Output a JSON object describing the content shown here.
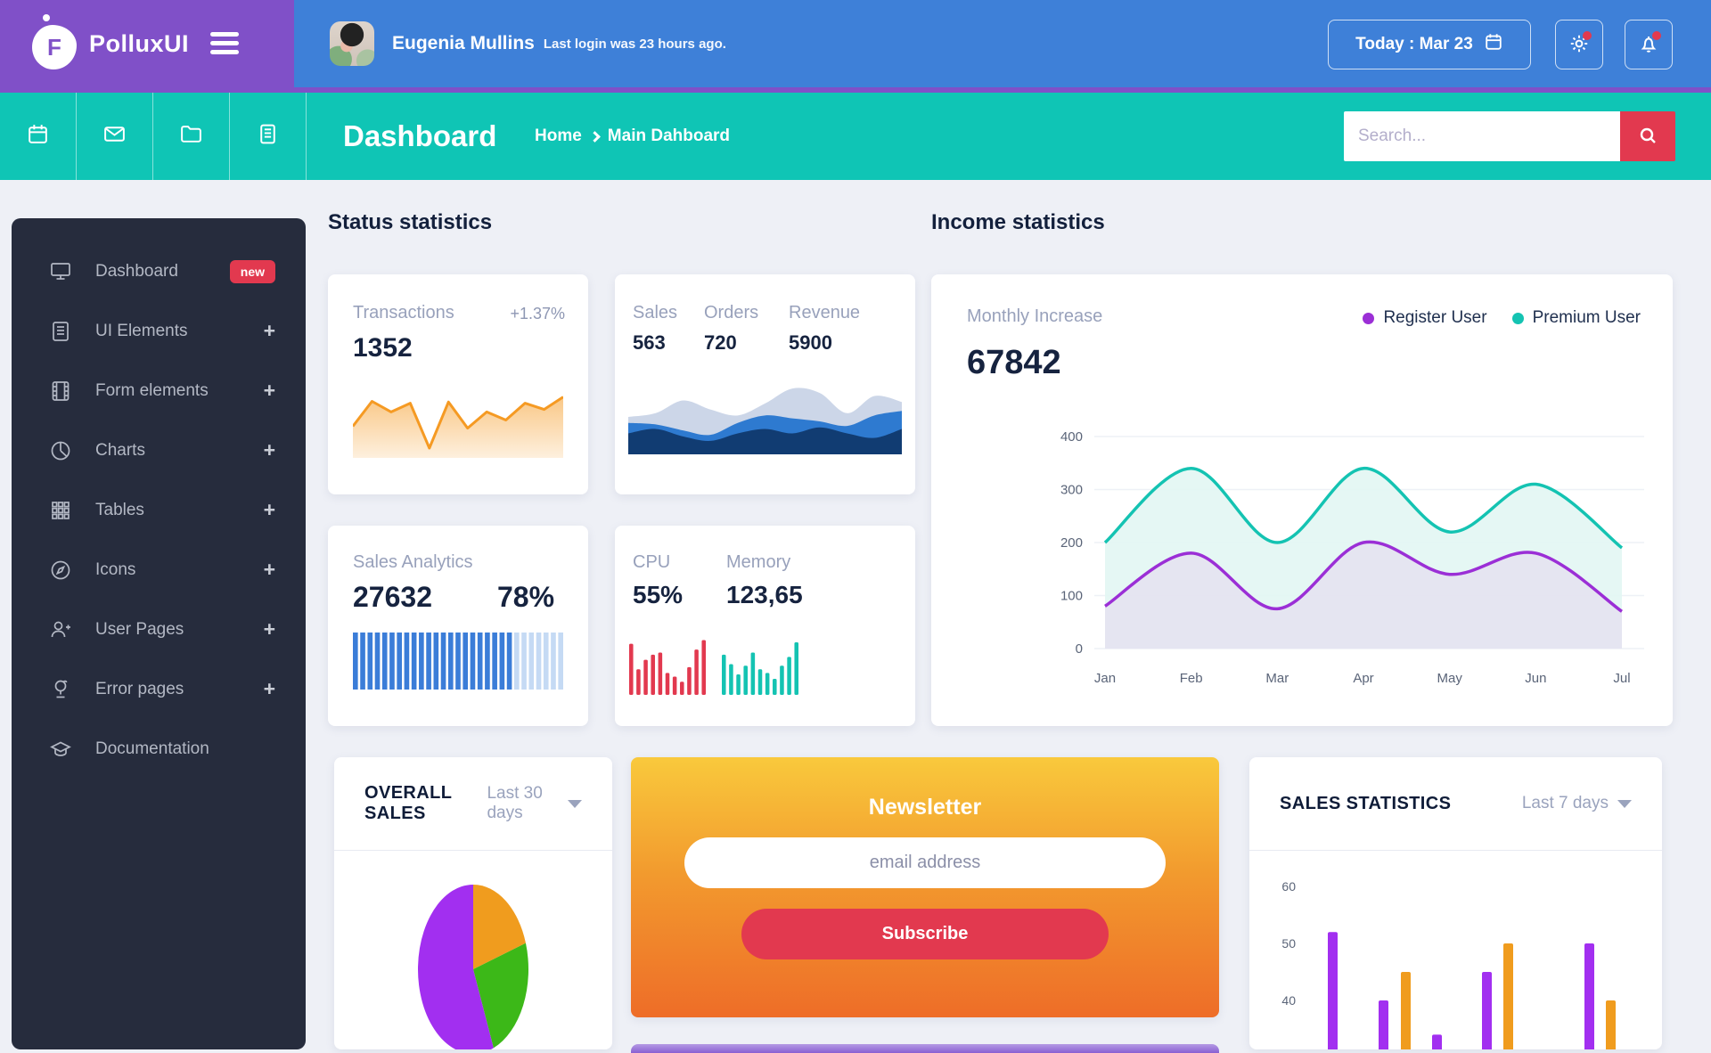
{
  "brand": {
    "name": "PolluxUI",
    "logo_letter": "F"
  },
  "header": {
    "user_name": "Eugenia Mullins",
    "last_login": "Last login was 23 hours ago.",
    "today_label": "Today : Mar 23"
  },
  "subnav": {
    "title": "Dashboard",
    "breadcrumb": {
      "home": "Home",
      "current": "Main Dahboard"
    },
    "search_placeholder": "Search...",
    "icons": [
      "calendar",
      "envelope",
      "folder",
      "notes"
    ]
  },
  "sidebar": {
    "expand_glyph": "+",
    "items": [
      {
        "label": "Dashboard",
        "icon": "monitor",
        "badge": "new"
      },
      {
        "label": "UI Elements",
        "icon": "file-text",
        "expand": true
      },
      {
        "label": "Form elements",
        "icon": "film",
        "expand": true
      },
      {
        "label": "Charts",
        "icon": "pie",
        "expand": true
      },
      {
        "label": "Tables",
        "icon": "grid",
        "expand": true
      },
      {
        "label": "Icons",
        "icon": "compass",
        "expand": true
      },
      {
        "label": "User Pages",
        "icon": "user-plus",
        "expand": true
      },
      {
        "label": "Error pages",
        "icon": "lamp",
        "expand": true
      },
      {
        "label": "Documentation",
        "icon": "cap",
        "expand": false
      }
    ]
  },
  "sections": {
    "status_title": "Status statistics",
    "income_title": "Income statistics"
  },
  "cards": {
    "transactions": {
      "label": "Transactions",
      "delta": "+1.37%",
      "value": "1352"
    },
    "sales_orders_revenue": {
      "columns": [
        {
          "label": "Sales",
          "value": "563"
        },
        {
          "label": "Orders",
          "value": "720"
        },
        {
          "label": "Revenue",
          "value": "5900"
        }
      ]
    },
    "sales_analytics": {
      "label": "Sales Analytics",
      "value": "27632",
      "percent": "78%"
    },
    "cpu_memory": {
      "cpu_label": "CPU",
      "cpu_value": "55%",
      "memory_label": "Memory",
      "memory_value": "123,65"
    },
    "income": {
      "label": "Monthly Increase",
      "value": "67842"
    },
    "overall_sales": {
      "title": "OVERALL SALES",
      "range": "Last 30 days"
    },
    "newsletter": {
      "title": "Newsletter",
      "email_placeholder": "email address",
      "button_label": "Subscribe"
    },
    "sales_statistics": {
      "title": "SALES STATISTICS",
      "range": "Last 7 days"
    }
  },
  "colors": {
    "purple_header": "#8050c8",
    "blue_header": "#3e80d8",
    "teal_bar": "#0fc5b5",
    "accent_red": "#e2394f",
    "sidebar_bg": "#262c3d",
    "orange_line": "#f59a23",
    "bar_blue": "#3b7dd8",
    "bar_blue_light": "#c5daf4",
    "cpu_red": "#e2394f",
    "memory_teal": "#14c3b2",
    "pie_purple": "#a22ff0",
    "pie_orange": "#f09c1e",
    "pie_green": "#3cb818"
  },
  "chart_data": [
    {
      "id": "transactions-spark",
      "type": "line",
      "title": "Transactions sparkline",
      "color": "#f59a23",
      "values": [
        45,
        85,
        68,
        82,
        10,
        84,
        42,
        68,
        55,
        82,
        72,
        92
      ],
      "ylim": [
        0,
        100
      ],
      "grid": false
    },
    {
      "id": "waves",
      "type": "area",
      "title": "Sales/Orders/Revenue waves",
      "series": [
        {
          "name": "top-light",
          "color": "#ccd6e8",
          "values": [
            50,
            55,
            72,
            60,
            52,
            68,
            88,
            82,
            55,
            78,
            70
          ]
        },
        {
          "name": "mid-blue",
          "color": "#2e7ad0",
          "values": [
            42,
            40,
            32,
            26,
            42,
            52,
            48,
            44,
            38,
            52,
            58
          ]
        },
        {
          "name": "dark-navy",
          "color": "#113c72",
          "values": [
            28,
            34,
            24,
            18,
            28,
            34,
            28,
            36,
            28,
            22,
            34
          ]
        }
      ],
      "ylim": [
        0,
        100
      ],
      "grid": false
    },
    {
      "id": "sales-analytics-bars",
      "type": "bar",
      "title": "Sales Analytics progress bars",
      "total_bars": 29,
      "solid_bars": 22,
      "solid_color": "#3b7dd8",
      "light_color": "#c5daf4"
    },
    {
      "id": "cpu-spark",
      "type": "bar",
      "color": "#e2394f",
      "values": [
        70,
        35,
        48,
        55,
        58,
        30,
        25,
        18,
        38,
        62,
        75
      ],
      "ylim": [
        0,
        100
      ]
    },
    {
      "id": "memory-spark",
      "type": "bar",
      "color": "#14c3b2",
      "values": [
        55,
        42,
        28,
        40,
        58,
        35,
        30,
        22,
        40,
        52,
        72
      ],
      "ylim": [
        0,
        100
      ]
    },
    {
      "id": "income",
      "type": "line",
      "title": "Income statistics",
      "legend_position": "top-right",
      "grid": true,
      "x": [
        "Jan",
        "Feb",
        "Mar",
        "Apr",
        "May",
        "Jun",
        "Jul"
      ],
      "yticks": [
        0,
        100,
        200,
        300,
        400
      ],
      "ylim": [
        0,
        400
      ],
      "series": [
        {
          "name": "Premium User",
          "color": "#14c3b2",
          "fill": "#e2f6f3",
          "values": [
            200,
            340,
            200,
            340,
            220,
            310,
            190
          ]
        },
        {
          "name": "Register User",
          "color": "#9b2fd6",
          "fill": "#e4e2f1",
          "values": [
            80,
            180,
            75,
            200,
            140,
            180,
            70
          ]
        }
      ]
    },
    {
      "id": "overall-sales-pie",
      "type": "pie",
      "title": "OVERALL SALES — Last 30 days",
      "slices": [
        {
          "name": "orange",
          "value": 20,
          "color": "#f09c1e"
        },
        {
          "name": "green",
          "value": 24,
          "color": "#3cb818"
        },
        {
          "name": "purple",
          "value": 56,
          "color": "#a22ff0"
        }
      ]
    },
    {
      "id": "sales-statistics",
      "type": "bar",
      "title": "SALES STATISTICS — Last 7 days",
      "yticks": [
        40,
        50,
        60
      ],
      "ylim_top": 60,
      "bars": [
        {
          "x": 88,
          "value": 52,
          "color": "#a22ff0"
        },
        {
          "x": 145,
          "value": 40,
          "color": "#a22ff0"
        },
        {
          "x": 170,
          "value": 45,
          "color": "#f09c1e"
        },
        {
          "x": 205,
          "value": 34,
          "color": "#a22ff0"
        },
        {
          "x": 261,
          "value": 45,
          "color": "#a22ff0"
        },
        {
          "x": 285,
          "value": 50,
          "color": "#f09c1e"
        },
        {
          "x": 376,
          "value": 50,
          "color": "#a22ff0"
        },
        {
          "x": 400,
          "value": 40,
          "color": "#f09c1e"
        }
      ]
    }
  ]
}
